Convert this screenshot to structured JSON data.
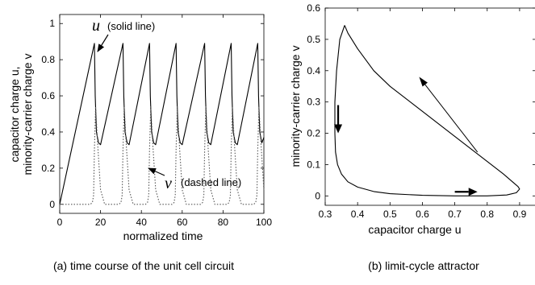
{
  "panels": {
    "a": {
      "caption": "(a) time course of the unit cell circuit",
      "xlabel": "normalized time",
      "ylabel_line1": "capacitor charge u,",
      "ylabel_line2": "minority-carrier charge v",
      "annotation_u_symbol": "u",
      "annotation_u_text": "(solid line)",
      "annotation_v_symbol": "v",
      "annotation_v_text": "(dashed line)"
    },
    "b": {
      "caption": "(b) limit-cycle attractor",
      "xlabel": "capacitor charge u",
      "ylabel": "minority-carrier charge v"
    }
  },
  "chart_data": [
    {
      "type": "line",
      "xlim": [
        0,
        100
      ],
      "ylim": [
        -0.05,
        1.05
      ],
      "xticks": [
        0,
        20,
        40,
        60,
        80,
        100
      ],
      "yticks": [
        0,
        0.2,
        0.4,
        0.6,
        0.8,
        1
      ],
      "ytick_labels": [
        "0",
        "0.2",
        "0.4",
        "0.6",
        "0.8",
        "1"
      ],
      "series": [
        {
          "label": "u",
          "style": "solid",
          "color": "#000000",
          "x": [
            0,
            17,
            17.4,
            18,
            19,
            20,
            31,
            31.4,
            32,
            33,
            34,
            44,
            44.4,
            45,
            46,
            47,
            57,
            57.4,
            58,
            59,
            60,
            71,
            71.4,
            72,
            73,
            74,
            84,
            84.4,
            85,
            86,
            87,
            97,
            97.4,
            98,
            99,
            100
          ],
          "y": [
            0,
            0.89,
            0.6,
            0.4,
            0.34,
            0.33,
            0.89,
            0.6,
            0.4,
            0.34,
            0.33,
            0.89,
            0.6,
            0.4,
            0.34,
            0.33,
            0.89,
            0.6,
            0.4,
            0.34,
            0.33,
            0.89,
            0.6,
            0.4,
            0.34,
            0.33,
            0.89,
            0.6,
            0.4,
            0.34,
            0.33,
            0.89,
            0.6,
            0.4,
            0.34,
            0.37
          ]
        },
        {
          "label": "v",
          "style": "dashed",
          "color": "#555555",
          "x": [
            0,
            15,
            16,
            16.6,
            17,
            17.6,
            18.5,
            20,
            22,
            29,
            30,
            30.6,
            31,
            31.6,
            32.5,
            34,
            36,
            42,
            43,
            43.6,
            44,
            44.6,
            45.5,
            47,
            49,
            55,
            56,
            56.6,
            57,
            57.6,
            58.5,
            60,
            62,
            69,
            70,
            70.6,
            71,
            71.6,
            72.5,
            74,
            76,
            82,
            83,
            83.6,
            84,
            84.6,
            85.5,
            87,
            89,
            95,
            96,
            96.6,
            97,
            97.6,
            98.5,
            100
          ],
          "y": [
            0,
            0,
            0.01,
            0.05,
            0.3,
            0.54,
            0.35,
            0.08,
            0,
            0,
            0.01,
            0.05,
            0.3,
            0.54,
            0.35,
            0.08,
            0,
            0,
            0.01,
            0.05,
            0.3,
            0.54,
            0.35,
            0.08,
            0,
            0,
            0.01,
            0.05,
            0.3,
            0.54,
            0.35,
            0.08,
            0,
            0,
            0.01,
            0.05,
            0.3,
            0.54,
            0.35,
            0.08,
            0,
            0,
            0.01,
            0.05,
            0.3,
            0.54,
            0.35,
            0.08,
            0,
            0,
            0.01,
            0.05,
            0.3,
            0.54,
            0.35,
            0.08
          ]
        }
      ]
    },
    {
      "type": "line",
      "xlim": [
        0.3,
        0.95
      ],
      "ylim": [
        -0.03,
        0.6
      ],
      "xticks": [
        0.3,
        0.4,
        0.5,
        0.6,
        0.7,
        0.8,
        0.9
      ],
      "xtick_labels": [
        "0.3",
        "0.4",
        "0.5",
        "0.6",
        "0.7",
        "0.8",
        "0.9"
      ],
      "yticks": [
        0,
        0.1,
        0.2,
        0.3,
        0.4,
        0.5,
        0.6
      ],
      "ytick_labels": [
        "0",
        "0.1",
        "0.2",
        "0.3",
        "0.4",
        "0.5",
        "0.6"
      ],
      "series": [
        {
          "label": "limit cycle",
          "style": "solid",
          "color": "#000000",
          "x": [
            0.36,
            0.345,
            0.335,
            0.33,
            0.33,
            0.332,
            0.338,
            0.35,
            0.37,
            0.4,
            0.45,
            0.5,
            0.6,
            0.7,
            0.8,
            0.86,
            0.89,
            0.9,
            0.895,
            0.85,
            0.8,
            0.7,
            0.6,
            0.5,
            0.45,
            0.4,
            0.37,
            0.36
          ],
          "y": [
            0.545,
            0.5,
            0.4,
            0.3,
            0.2,
            0.14,
            0.1,
            0.07,
            0.045,
            0.028,
            0.014,
            0.007,
            0.002,
            0,
            0,
            0.003,
            0.01,
            0.022,
            0.03,
            0.07,
            0.11,
            0.19,
            0.27,
            0.35,
            0.4,
            0.47,
            0.52,
            0.545
          ]
        }
      ],
      "arrows": [
        {
          "from": [
            0.34,
            0.29
          ],
          "to": [
            0.34,
            0.2
          ],
          "weight": "bold"
        },
        {
          "from": [
            0.77,
            0.14
          ],
          "to": [
            0.59,
            0.38
          ],
          "weight": "thin"
        },
        {
          "from": [
            0.7,
            0.013
          ],
          "to": [
            0.77,
            0.013
          ],
          "weight": "bold"
        }
      ]
    }
  ]
}
